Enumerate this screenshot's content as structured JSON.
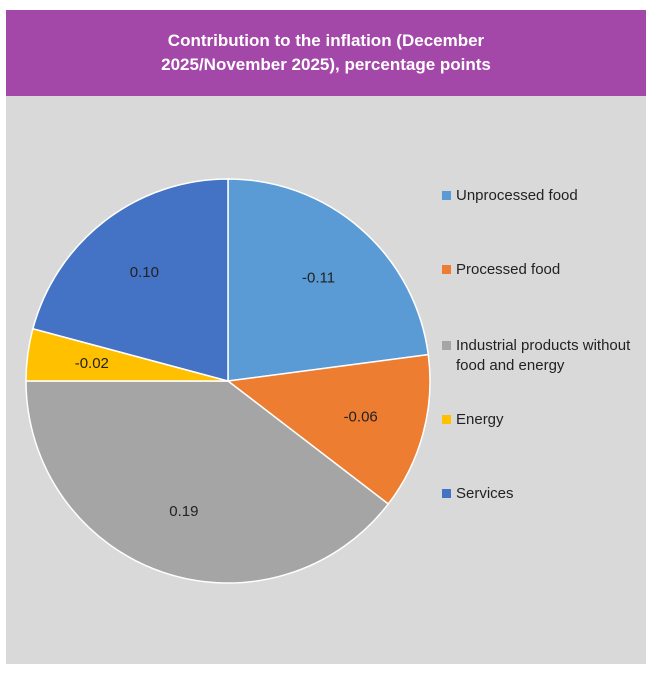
{
  "chart_data": {
    "type": "pie",
    "title": "Contribution to the inflation (December 2025/November 2025), percentage points",
    "categories": [
      "Unprocessed food",
      "Processed food",
      "Industrial products without food and energy",
      "Energy",
      "Services"
    ],
    "values": [
      -0.11,
      -0.06,
      0.19,
      -0.02,
      0.1
    ],
    "value_labels": [
      "-0.11",
      "-0.06",
      "0.19",
      "-0.02",
      "0.10"
    ],
    "colors": [
      "#5b9bd5",
      "#ed7d31",
      "#a5a5a5",
      "#ffc000",
      "#4472c4"
    ],
    "legend_position": "right"
  }
}
